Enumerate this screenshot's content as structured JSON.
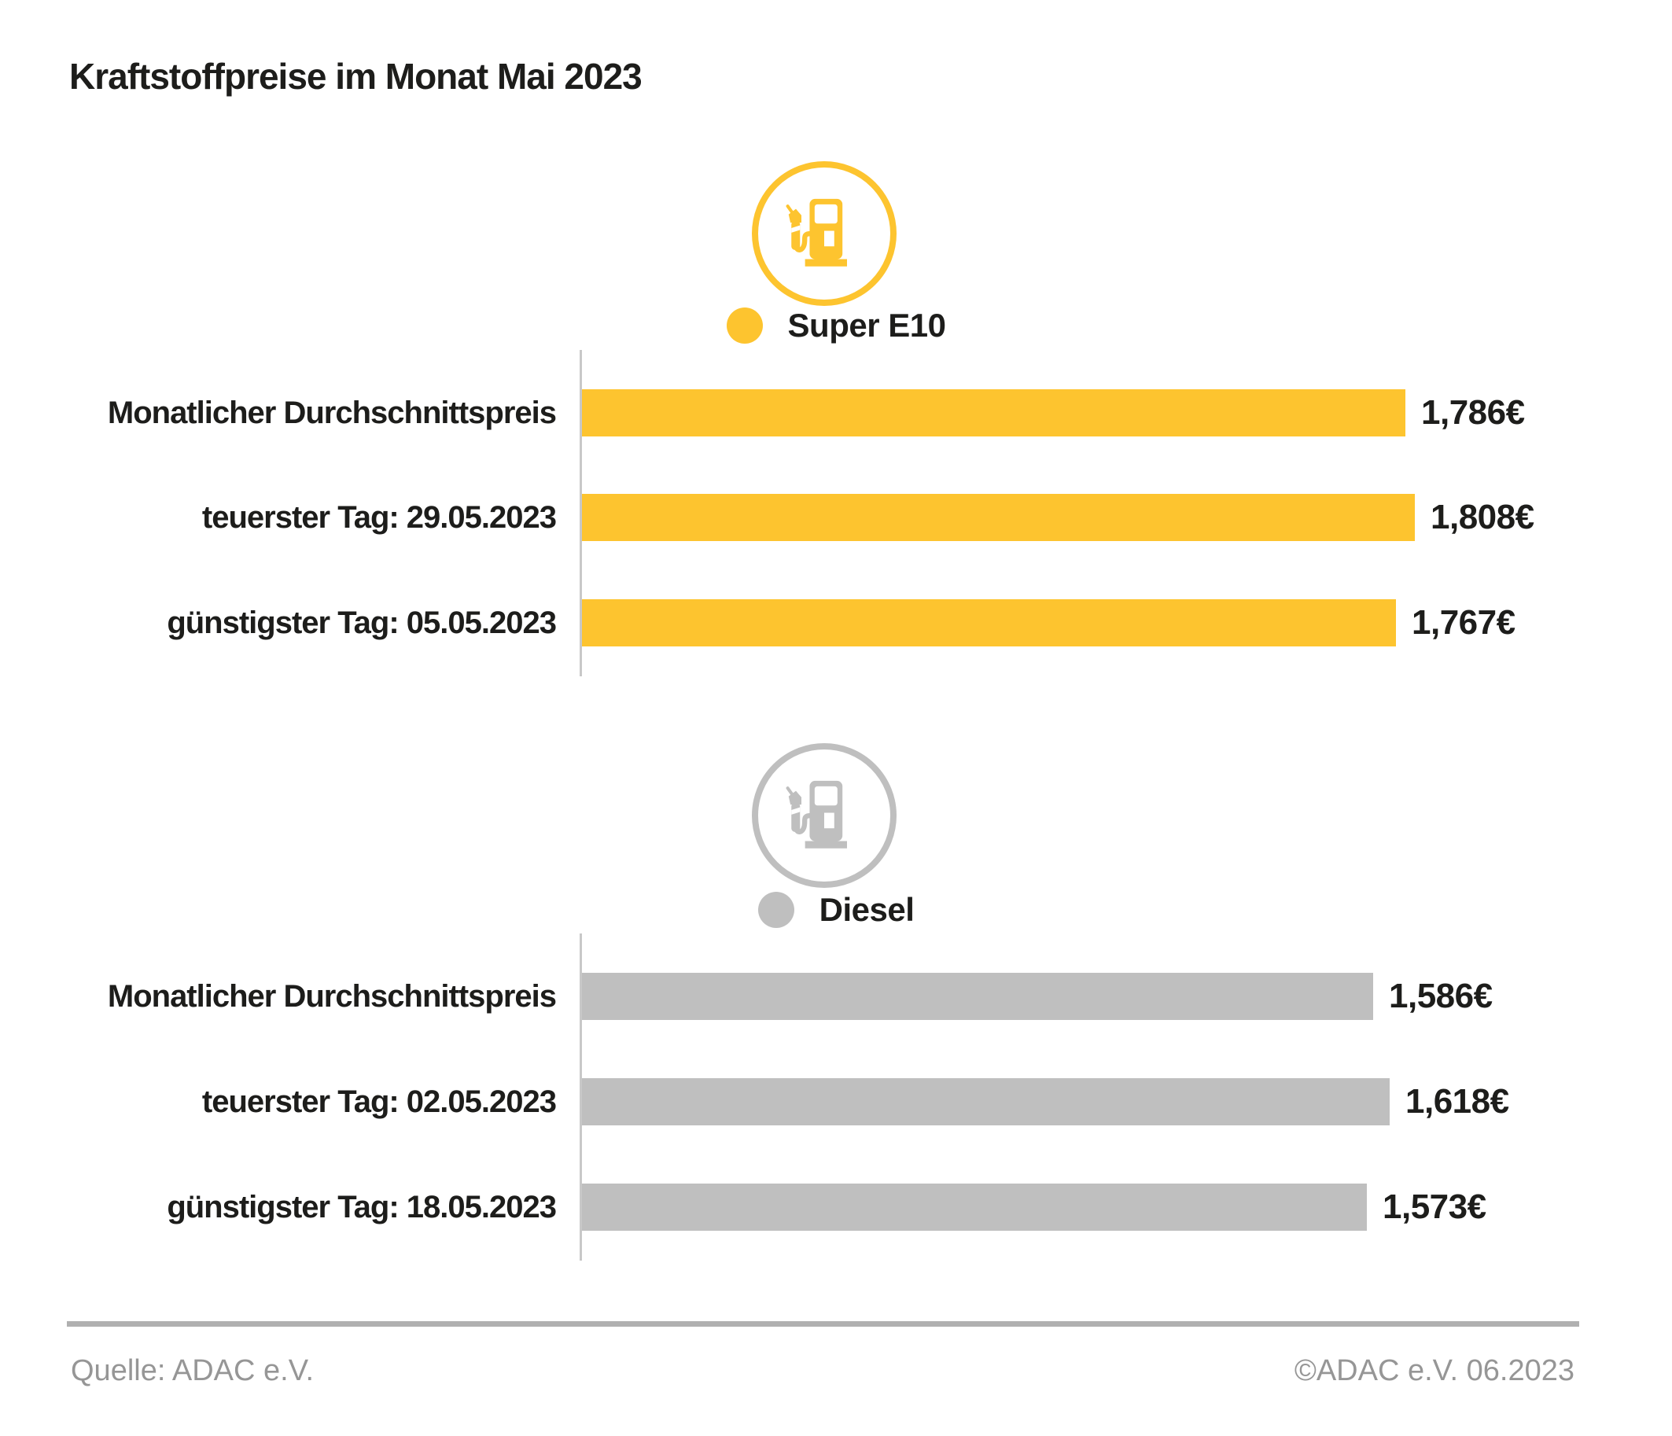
{
  "title": "Kraftstoffpreise im Monat Mai 2023",
  "footer": {
    "source": "Quelle: ADAC e.V.",
    "copyright": "©ADAC e.V. 06.2023"
  },
  "colors": {
    "super_e10_yellow": "#FDC42F",
    "diesel_gray": "#BFBFBF",
    "text": "#1D1D1B",
    "axis_line": "#C8C8C8",
    "footer_rule": "#B0B0B0",
    "footer_text": "#969696"
  },
  "chart_data": [
    {
      "type": "bar",
      "orientation": "horizontal",
      "series_name": "Super E10",
      "icon": "fuel-pump-icon",
      "color": "#FDC42F",
      "legend_position": "top-center",
      "grid": false,
      "xlim": [
        0,
        1.85
      ],
      "categories": [
        "Monatlicher Durchschnittspreis",
        "teuerster Tag: 29.05.2023",
        "günstigster Tag: 05.05.2023"
      ],
      "values": [
        1.786,
        1.808,
        1.767
      ],
      "value_labels": [
        "1,786€",
        "1,808€",
        "1,767€"
      ]
    },
    {
      "type": "bar",
      "orientation": "horizontal",
      "series_name": "Diesel",
      "icon": "fuel-pump-icon",
      "color": "#BFBFBF",
      "legend_position": "top-center",
      "grid": false,
      "xlim": [
        0,
        1.65
      ],
      "categories": [
        "Monatlicher Durchschnittspreis",
        "teuerster Tag: 02.05.2023",
        "günstigster Tag: 18.05.2023"
      ],
      "values": [
        1.586,
        1.618,
        1.573
      ],
      "value_labels": [
        "1,586€",
        "1,618€",
        "1,573€"
      ]
    }
  ]
}
